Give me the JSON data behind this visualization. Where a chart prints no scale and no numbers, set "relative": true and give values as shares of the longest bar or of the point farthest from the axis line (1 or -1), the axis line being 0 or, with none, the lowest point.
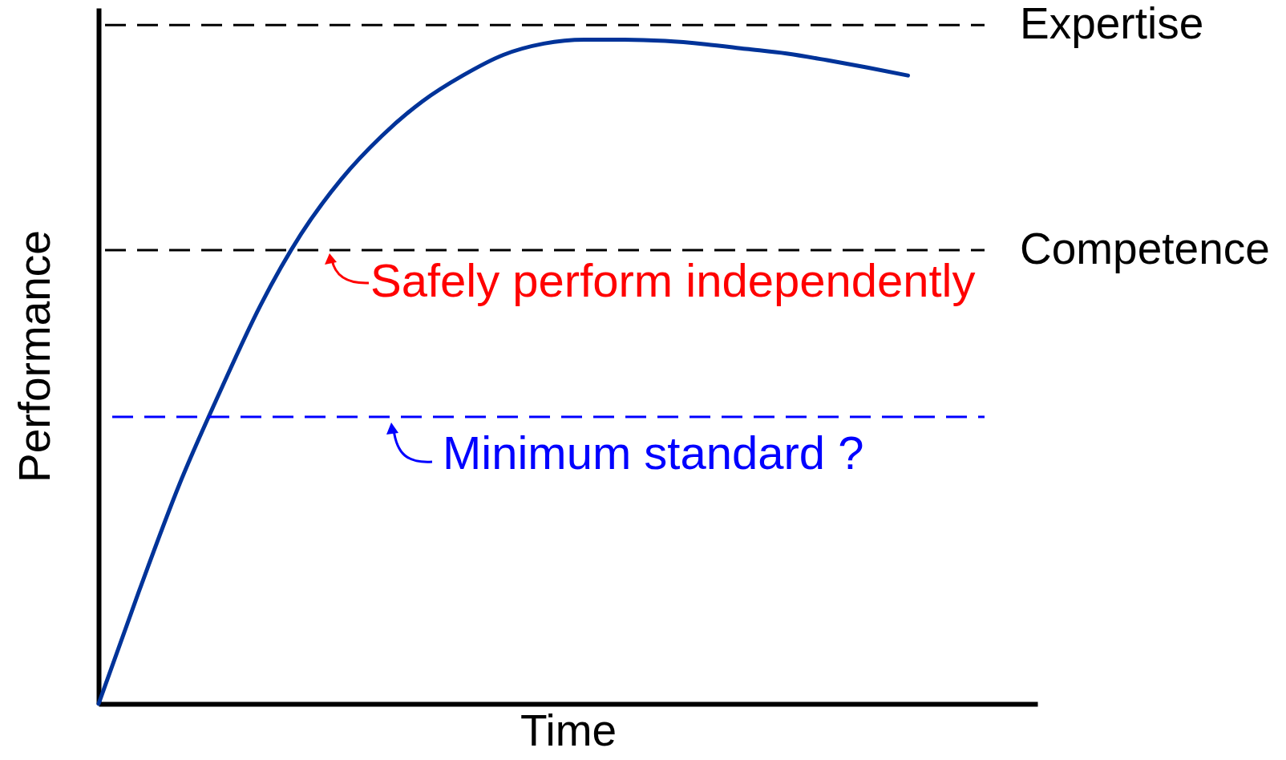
{
  "chart_data": {
    "type": "line",
    "relative": true,
    "xlabel": "Time",
    "ylabel": "Performance",
    "categories": [
      null,
      null,
      null,
      null,
      null,
      null,
      null,
      null,
      null,
      null,
      null,
      null,
      null,
      null,
      null,
      null,
      null,
      null,
      null,
      null,
      null,
      null,
      null,
      null
    ],
    "series": [
      {
        "color": "#003399",
        "values": [
          0,
          0.17,
          0.331,
          0.47,
          0.6,
          0.707,
          0.79,
          0.855,
          0.907,
          0.946,
          0.977,
          0.994,
          1,
          1,
          0.998,
          0.993,
          0.986,
          0.979,
          0.969,
          0.958,
          0.946,
          null,
          null,
          null
        ]
      }
    ],
    "ref_lines": [
      {
        "axis": "y",
        "value": 1.022,
        "label": "Expertise",
        "color": "#000000",
        "line_style": "dashed"
      },
      {
        "axis": "y",
        "value": 0.683,
        "label": "Competence",
        "color": "#000000",
        "line_style": "dashed"
      },
      {
        "axis": "y",
        "value": 0.432,
        "color": "#0000ff",
        "line_style": "dashed"
      }
    ],
    "annotations": [
      "Safely perform independently",
      "Minimum standard ?"
    ],
    "marker": "none",
    "line_style": "solid"
  }
}
